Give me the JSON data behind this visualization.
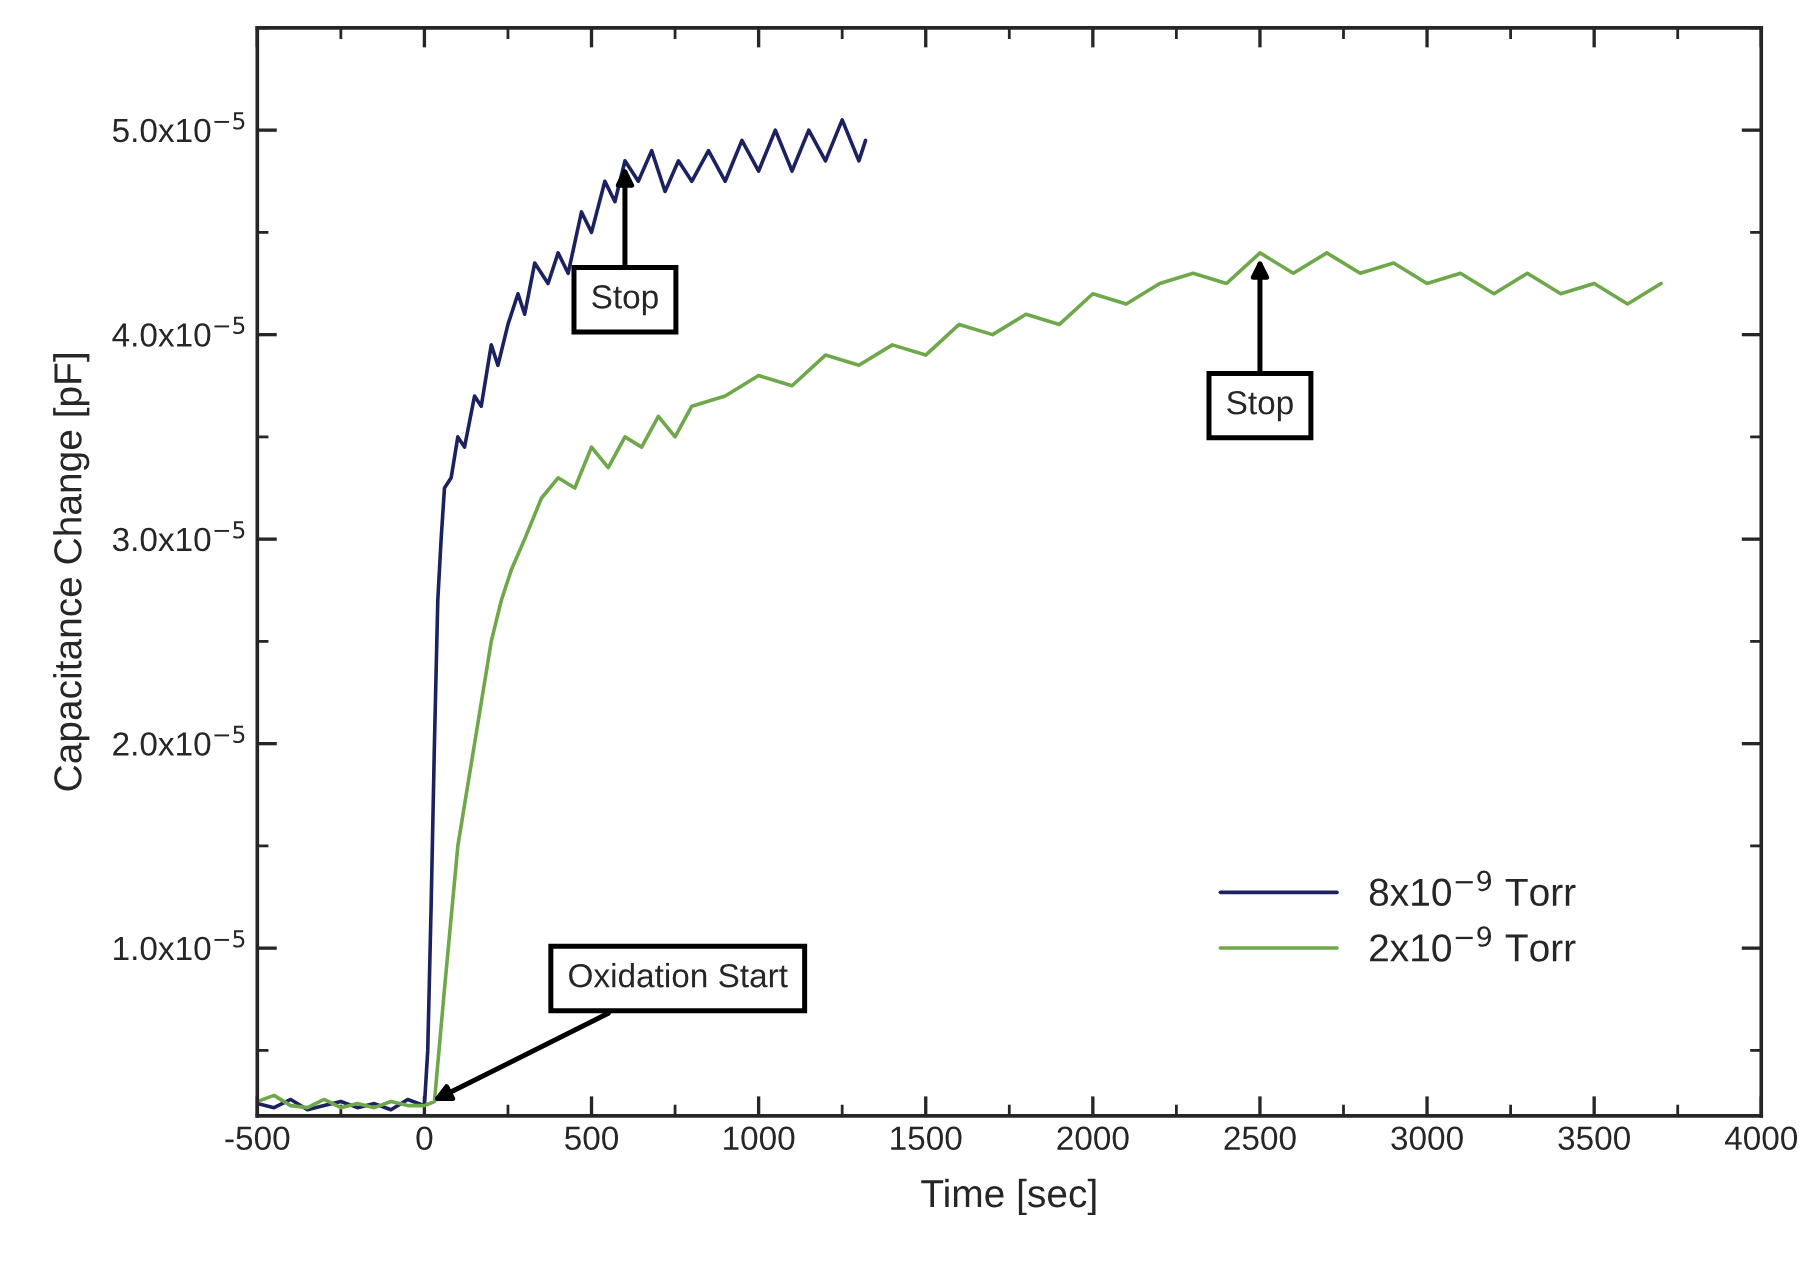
{
  "chart_data": {
    "type": "line",
    "xlabel": "Time [sec]",
    "ylabel": "Capacitance Change [pF]",
    "xlim": [
      -500,
      4000
    ],
    "xticks": [
      -500,
      0,
      500,
      1000,
      1500,
      2000,
      2500,
      3000,
      3500,
      4000
    ],
    "ylim": [
      1.8e-06,
      5.5e-05
    ],
    "yticks": [
      {
        "value": 1e-05,
        "label": "1.0x10$^{−5}$"
      },
      {
        "value": 2e-05,
        "label": "2.0x10$^{−5}$"
      },
      {
        "value": 3e-05,
        "label": "3.0x10$^{−5}$"
      },
      {
        "value": 4e-05,
        "label": "4.0x10$^{−5}$"
      },
      {
        "value": 5e-05,
        "label": "5.0x10$^{−5}$"
      }
    ],
    "grid": false,
    "legend": "bottom right",
    "series": [
      {
        "name": "8x10$^{−9}$ Torr",
        "color": "#1c2160",
        "x": [
          -500,
          -450,
          -400,
          -350,
          -300,
          -250,
          -200,
          -150,
          -100,
          -50,
          0,
          10,
          20,
          30,
          40,
          50,
          60,
          80,
          100,
          120,
          150,
          170,
          200,
          220,
          250,
          280,
          300,
          330,
          370,
          400,
          430,
          470,
          500,
          540,
          570,
          600,
          640,
          680,
          720,
          760,
          800,
          850,
          900,
          950,
          1000,
          1050,
          1100,
          1150,
          1200,
          1250,
          1300,
          1320
        ],
        "values": [
          2.4e-06,
          2.2e-06,
          2.6e-06,
          2.1e-06,
          2.3e-06,
          2.5e-06,
          2.2e-06,
          2.4e-06,
          2.1e-06,
          2.6e-06,
          2.3e-06,
          5e-06,
          1.2e-05,
          2e-05,
          2.7e-05,
          3e-05,
          3.25e-05,
          3.3e-05,
          3.5e-05,
          3.45e-05,
          3.7e-05,
          3.65e-05,
          3.95e-05,
          3.85e-05,
          4.05e-05,
          4.2e-05,
          4.1e-05,
          4.35e-05,
          4.25e-05,
          4.4e-05,
          4.3e-05,
          4.6e-05,
          4.5e-05,
          4.75e-05,
          4.65e-05,
          4.85e-05,
          4.75e-05,
          4.9e-05,
          4.7e-05,
          4.85e-05,
          4.75e-05,
          4.9e-05,
          4.75e-05,
          4.95e-05,
          4.8e-05,
          5e-05,
          4.8e-05,
          5e-05,
          4.85e-05,
          5.05e-05,
          4.85e-05,
          4.95e-05
        ]
      },
      {
        "name": "2x10$^{−9}$ Torr",
        "color": "#6fa84a",
        "x": [
          -500,
          -450,
          -400,
          -350,
          -300,
          -250,
          -200,
          -150,
          -100,
          -50,
          0,
          30,
          60,
          100,
          130,
          160,
          200,
          230,
          260,
          300,
          350,
          400,
          450,
          500,
          550,
          600,
          650,
          700,
          750,
          800,
          900,
          1000,
          1100,
          1200,
          1300,
          1400,
          1500,
          1600,
          1700,
          1800,
          1900,
          2000,
          2100,
          2200,
          2300,
          2400,
          2500,
          2600,
          2700,
          2800,
          2900,
          3000,
          3100,
          3200,
          3300,
          3400,
          3500,
          3600,
          3700
        ],
        "values": [
          2.5e-06,
          2.8e-06,
          2.3e-06,
          2.2e-06,
          2.6e-06,
          2.2e-06,
          2.4e-06,
          2.2e-06,
          2.5e-06,
          2.3e-06,
          2.3e-06,
          2.5e-06,
          8e-06,
          1.5e-05,
          1.8e-05,
          2.1e-05,
          2.5e-05,
          2.7e-05,
          2.85e-05,
          3e-05,
          3.2e-05,
          3.3e-05,
          3.25e-05,
          3.45e-05,
          3.35e-05,
          3.5e-05,
          3.45e-05,
          3.6e-05,
          3.5e-05,
          3.65e-05,
          3.7e-05,
          3.8e-05,
          3.75e-05,
          3.9e-05,
          3.85e-05,
          3.95e-05,
          3.9e-05,
          4.05e-05,
          4e-05,
          4.1e-05,
          4.05e-05,
          4.2e-05,
          4.15e-05,
          4.25e-05,
          4.3e-05,
          4.25e-05,
          4.4e-05,
          4.3e-05,
          4.4e-05,
          4.3e-05,
          4.35e-05,
          4.25e-05,
          4.3e-05,
          4.2e-05,
          4.3e-05,
          4.2e-05,
          4.25e-05,
          4.15e-05,
          4.25e-05
        ]
      }
    ],
    "annotations": [
      {
        "text": "Stop",
        "x": 600,
        "y": 4.85e-05
      },
      {
        "text": "Stop",
        "x": 2500,
        "y": 4.4e-05
      },
      {
        "text": "Oxidation Start",
        "x": 10,
        "y": 2.4e-06
      }
    ]
  }
}
